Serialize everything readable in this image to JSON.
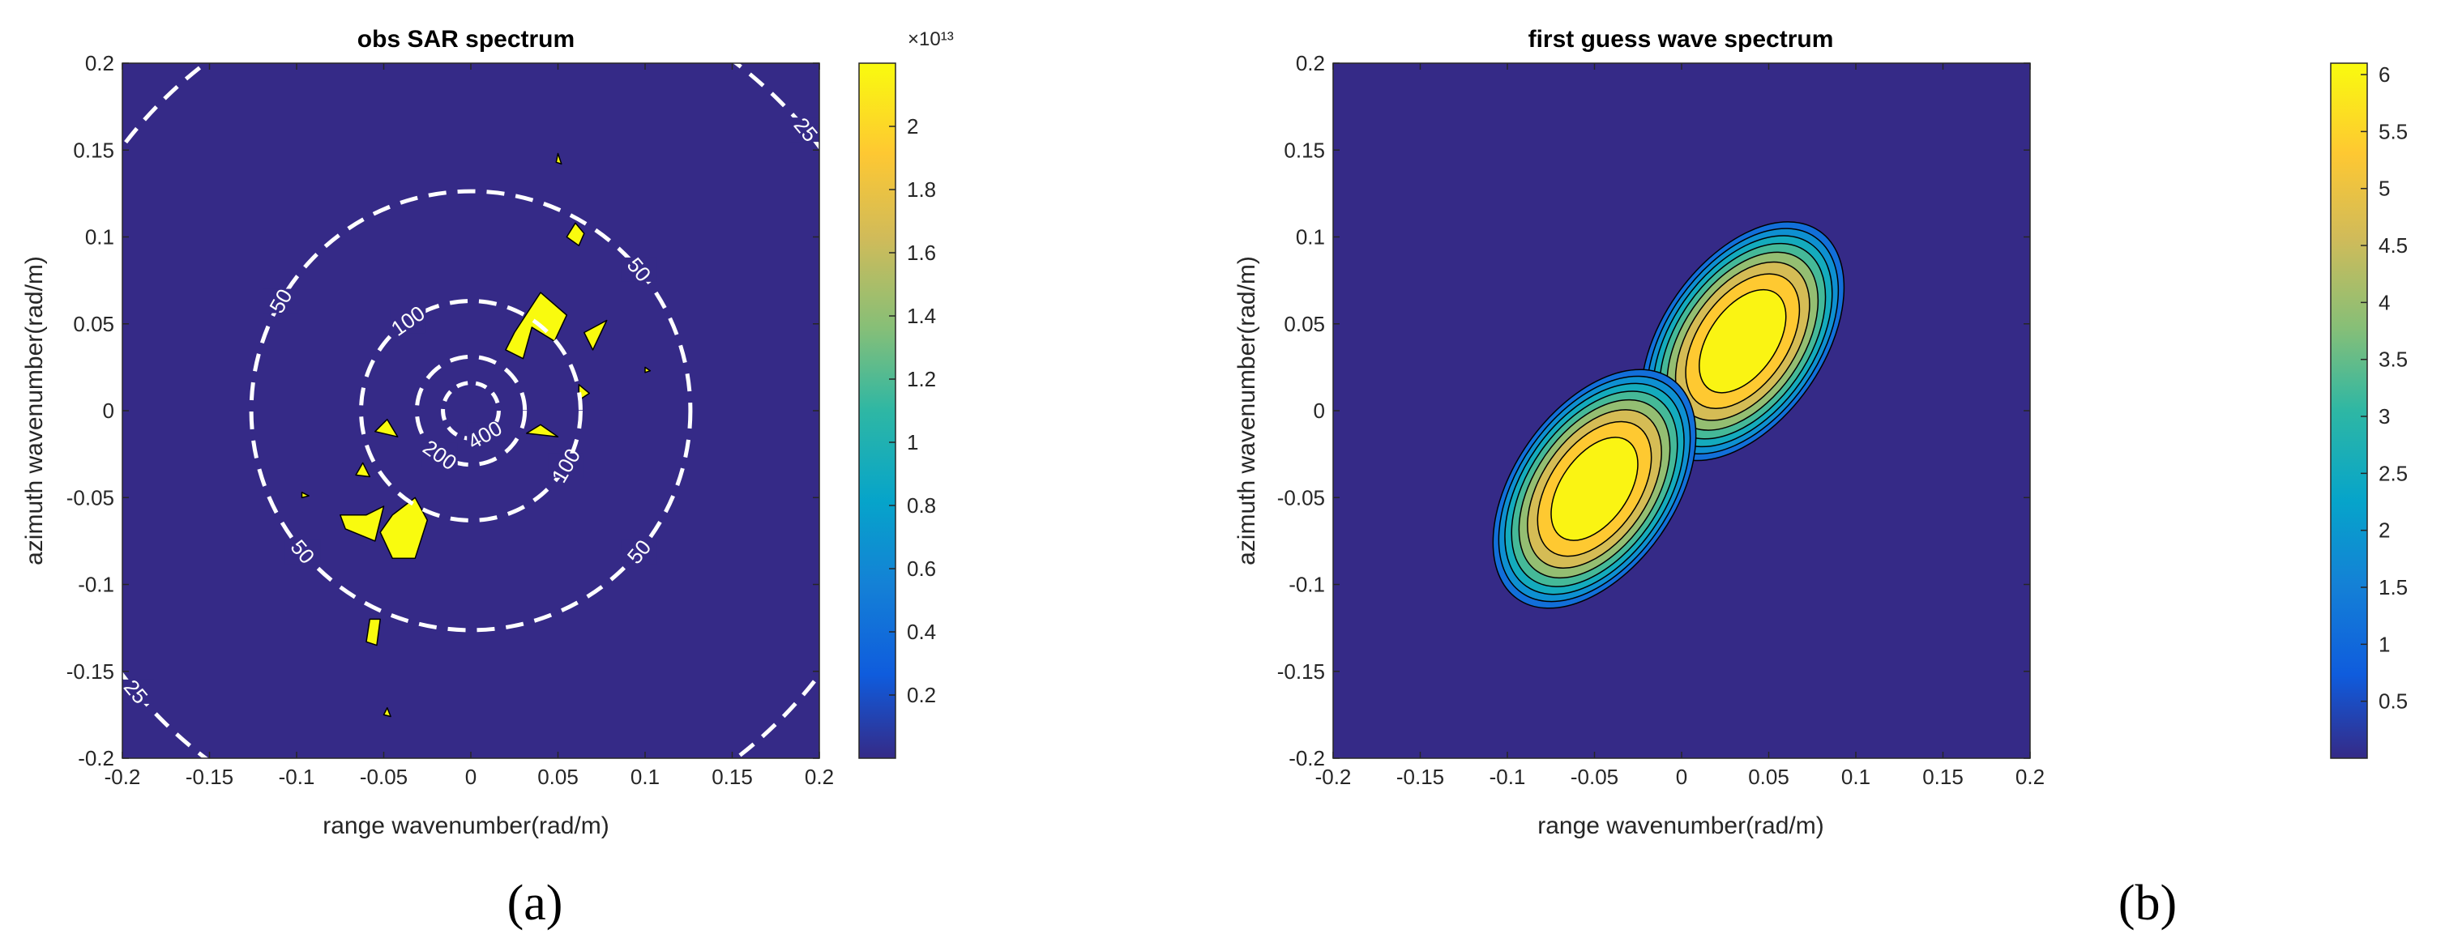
{
  "colors": {
    "background": "#352a87",
    "yellow": "#f9fb0e",
    "axis": "#262626",
    "contour_line": "#ffffff",
    "parula": [
      "#352a87",
      "#0f5cdd",
      "#1481d6",
      "#06a4ca",
      "#2eb7a4",
      "#87bf77",
      "#d1bb59",
      "#fec832",
      "#f9fb0e"
    ]
  },
  "panel_labels": {
    "a": "(a)",
    "b": "(b)"
  },
  "chart_data": [
    {
      "type": "heatmap",
      "title": "obs SAR spectrum",
      "xlabel": "range wavenumber(rad/m)",
      "ylabel": "azimuth wavenumber(rad/m)",
      "xlim": [
        -0.2,
        0.2
      ],
      "ylim": [
        -0.2,
        0.2
      ],
      "xticks": [
        "-0.2",
        "-0.15",
        "-0.1",
        "-0.05",
        "0",
        "0.05",
        "0.1",
        "0.15",
        "0.2"
      ],
      "yticks": [
        "-0.2",
        "-0.15",
        "-0.1",
        "-0.05",
        "0",
        "0.05",
        "0.1",
        "0.15",
        "0.2"
      ],
      "colorbar": {
        "ticks": [
          "0.2",
          "0.4",
          "0.6",
          "0.8",
          "1",
          "1.2",
          "1.4",
          "1.6",
          "1.8",
          "2"
        ],
        "exponent": "×10¹³",
        "range": [
          0,
          2.2
        ]
      },
      "wavelength_circles": [
        {
          "label": "25",
          "radius": 0.251
        },
        {
          "label": "50",
          "radius": 0.126
        },
        {
          "label": "100",
          "radius": 0.063
        },
        {
          "label": "200",
          "radius": 0.031
        },
        {
          "label": "400",
          "radius": 0.016
        }
      ],
      "high_energy_patches": [
        [
          [
            0.025,
            0.045
          ],
          [
            0.04,
            0.068
          ],
          [
            0.055,
            0.055
          ],
          [
            0.048,
            0.04
          ],
          [
            0.035,
            0.048
          ],
          [
            0.03,
            0.03
          ],
          [
            0.02,
            0.035
          ]
        ],
        [
          [
            0.06,
            0.108
          ],
          [
            0.065,
            0.102
          ],
          [
            0.062,
            0.095
          ],
          [
            0.055,
            0.1
          ]
        ],
        [
          [
            0.065,
            0.045
          ],
          [
            0.078,
            0.052
          ],
          [
            0.07,
            0.035
          ]
        ],
        [
          [
            0.062,
            0.015
          ],
          [
            0.068,
            0.01
          ],
          [
            0.062,
            0.006
          ]
        ],
        [
          [
            0.04,
            -0.008
          ],
          [
            0.05,
            -0.015
          ],
          [
            0.032,
            -0.013
          ]
        ],
        [
          [
            -0.048,
            -0.005
          ],
          [
            -0.042,
            -0.015
          ],
          [
            -0.055,
            -0.012
          ]
        ],
        [
          [
            -0.062,
            -0.03
          ],
          [
            -0.058,
            -0.038
          ],
          [
            -0.066,
            -0.037
          ]
        ],
        [
          [
            -0.06,
            -0.06
          ],
          [
            -0.05,
            -0.055
          ],
          [
            -0.055,
            -0.075
          ],
          [
            -0.072,
            -0.068
          ],
          [
            -0.075,
            -0.06
          ]
        ],
        [
          [
            -0.045,
            -0.06
          ],
          [
            -0.032,
            -0.05
          ],
          [
            -0.025,
            -0.063
          ],
          [
            -0.032,
            -0.085
          ],
          [
            -0.045,
            -0.085
          ],
          [
            -0.052,
            -0.07
          ]
        ],
        [
          [
            -0.058,
            -0.12
          ],
          [
            -0.052,
            -0.12
          ],
          [
            -0.054,
            -0.135
          ],
          [
            -0.06,
            -0.133
          ]
        ],
        [
          [
            0.05,
            0.148
          ],
          [
            0.052,
            0.142
          ],
          [
            0.049,
            0.143
          ]
        ],
        [
          [
            -0.048,
            -0.171
          ],
          [
            -0.046,
            -0.176
          ],
          [
            -0.05,
            -0.175
          ]
        ],
        [
          [
            -0.097,
            -0.047
          ],
          [
            -0.093,
            -0.049
          ],
          [
            -0.097,
            -0.05
          ]
        ],
        [
          [
            0.1,
            0.025
          ],
          [
            0.103,
            0.023
          ],
          [
            0.1,
            0.022
          ]
        ]
      ]
    },
    {
      "type": "heatmap",
      "title": "first guess wave spectrum",
      "xlabel": "range wavenumber(rad/m)",
      "ylabel": "azimuth wavenumber(rad/m)",
      "xlim": [
        -0.2,
        0.2
      ],
      "ylim": [
        -0.2,
        0.2
      ],
      "xticks": [
        "-0.2",
        "-0.15",
        "-0.1",
        "-0.05",
        "0",
        "0.05",
        "0.1",
        "0.15",
        "0.2"
      ],
      "yticks": [
        "-0.2",
        "-0.15",
        "-0.1",
        "-0.05",
        "0",
        "0.05",
        "0.1",
        "0.15",
        "0.2"
      ],
      "colorbar": {
        "ticks": [
          "0.5",
          "1",
          "1.5",
          "2",
          "2.5",
          "3",
          "3.5",
          "4",
          "4.5",
          "5",
          "5.5",
          "6"
        ],
        "range": [
          0,
          6.1
        ]
      },
      "contour_levels": [
        0.5,
        1.2,
        1.9,
        2.6,
        3.3,
        4.0,
        4.7,
        5.4
      ],
      "peak_value": 6,
      "lobes": [
        {
          "center": [
            0.035,
            0.04
          ],
          "peak": 6
        },
        {
          "center": [
            -0.05,
            -0.045
          ],
          "peak": 6
        }
      ]
    }
  ]
}
